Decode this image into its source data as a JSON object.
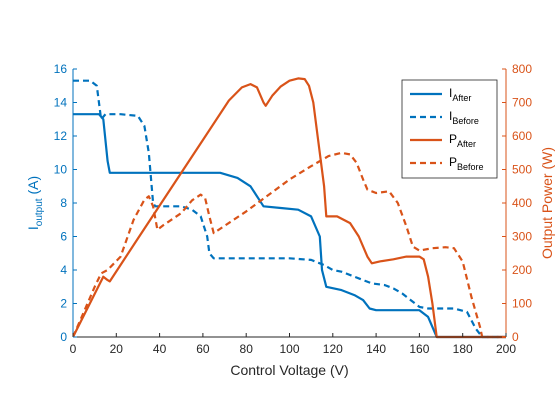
{
  "chart_data": {
    "type": "line",
    "title": "",
    "xlabel": "Control Voltage (V)",
    "ylabel_left": {
      "main": "I",
      "sub": "output",
      "tail": " (A)"
    },
    "ylabel_right": "Output Power (W)",
    "xlim": [
      0,
      200
    ],
    "ylim_left": [
      0,
      16
    ],
    "ylim_right": [
      0,
      800
    ],
    "xticks": [
      "0",
      "20",
      "40",
      "60",
      "80",
      "100",
      "120",
      "140",
      "160",
      "180",
      "200"
    ],
    "yticks_left": [
      "0",
      "2",
      "4",
      "6",
      "8",
      "10",
      "12",
      "14",
      "16"
    ],
    "yticks_right": [
      "0",
      "100",
      "200",
      "300",
      "400",
      "500",
      "600",
      "700",
      "800"
    ],
    "grid": false,
    "legend_position": "top-right",
    "colors": {
      "current": "#0072BD",
      "power": "#D95319",
      "axis": "#262626"
    },
    "series": [
      {
        "legend_main": "I",
        "legend_sub": "After",
        "axis": "left",
        "color": "#0072BD",
        "dash": "solid",
        "points": [
          [
            0,
            13.3
          ],
          [
            12,
            13.3
          ],
          [
            14,
            13.0
          ],
          [
            16,
            10.5
          ],
          [
            17,
            9.8
          ],
          [
            30,
            9.8
          ],
          [
            60,
            9.8
          ],
          [
            68,
            9.8
          ],
          [
            76,
            9.5
          ],
          [
            82,
            9.0
          ],
          [
            86,
            8.2
          ],
          [
            88,
            7.8
          ],
          [
            96,
            7.7
          ],
          [
            104,
            7.6
          ],
          [
            110,
            7.2
          ],
          [
            114,
            6.0
          ],
          [
            115,
            4.0
          ],
          [
            117,
            3.0
          ],
          [
            124,
            2.8
          ],
          [
            130,
            2.5
          ],
          [
            134,
            2.2
          ],
          [
            137,
            1.7
          ],
          [
            140,
            1.6
          ],
          [
            160,
            1.6
          ],
          [
            164,
            1.2
          ],
          [
            166,
            0.6
          ],
          [
            168,
            0
          ],
          [
            200,
            0
          ]
        ]
      },
      {
        "legend_main": "I",
        "legend_sub": "Before",
        "axis": "left",
        "color": "#0072BD",
        "dash": "dashed",
        "points": [
          [
            0,
            15.3
          ],
          [
            8,
            15.3
          ],
          [
            11,
            15.0
          ],
          [
            13,
            13.0
          ],
          [
            15,
            13.3
          ],
          [
            22,
            13.3
          ],
          [
            30,
            13.2
          ],
          [
            33,
            12.6
          ],
          [
            35,
            11.0
          ],
          [
            37,
            8.0
          ],
          [
            38,
            7.8
          ],
          [
            50,
            7.8
          ],
          [
            55,
            7.6
          ],
          [
            59,
            7.2
          ],
          [
            62,
            6.0
          ],
          [
            63,
            5.0
          ],
          [
            65,
            4.7
          ],
          [
            80,
            4.7
          ],
          [
            100,
            4.7
          ],
          [
            110,
            4.6
          ],
          [
            116,
            4.3
          ],
          [
            120,
            4.0
          ],
          [
            124,
            3.9
          ],
          [
            130,
            3.6
          ],
          [
            134,
            3.4
          ],
          [
            138,
            3.2
          ],
          [
            144,
            3.1
          ],
          [
            148,
            2.9
          ],
          [
            152,
            2.6
          ],
          [
            156,
            2.2
          ],
          [
            160,
            1.8
          ],
          [
            164,
            1.7
          ],
          [
            176,
            1.7
          ],
          [
            182,
            1.5
          ],
          [
            186,
            0.5
          ],
          [
            189,
            0
          ],
          [
            200,
            0
          ]
        ]
      },
      {
        "legend_main": "P",
        "legend_sub": "After",
        "axis": "right",
        "color": "#D95319",
        "dash": "solid",
        "points": [
          [
            0,
            0
          ],
          [
            14,
            180
          ],
          [
            16,
            170
          ],
          [
            17,
            166
          ],
          [
            30,
            294
          ],
          [
            60,
            588
          ],
          [
            72,
            706
          ],
          [
            78,
            745
          ],
          [
            82,
            755
          ],
          [
            85,
            745
          ],
          [
            88,
            700
          ],
          [
            89,
            690
          ],
          [
            92,
            720
          ],
          [
            96,
            748
          ],
          [
            100,
            765
          ],
          [
            104,
            772
          ],
          [
            107,
            770
          ],
          [
            109,
            750
          ],
          [
            111,
            700
          ],
          [
            113,
            600
          ],
          [
            116,
            450
          ],
          [
            117,
            360
          ],
          [
            122,
            360
          ],
          [
            128,
            340
          ],
          [
            132,
            300
          ],
          [
            136,
            240
          ],
          [
            138,
            220
          ],
          [
            142,
            226
          ],
          [
            148,
            232
          ],
          [
            154,
            240
          ],
          [
            160,
            240
          ],
          [
            162,
            232
          ],
          [
            164,
            180
          ],
          [
            166,
            100
          ],
          [
            168,
            0
          ],
          [
            200,
            0
          ]
        ]
      },
      {
        "legend_main": "P",
        "legend_sub": "Before",
        "axis": "right",
        "color": "#D95319",
        "dash": "dashed",
        "points": [
          [
            0,
            0
          ],
          [
            10,
            150
          ],
          [
            13,
            190
          ],
          [
            16,
            200
          ],
          [
            22,
            240
          ],
          [
            28,
            350
          ],
          [
            33,
            410
          ],
          [
            35,
            420
          ],
          [
            37,
            390
          ],
          [
            39,
            320
          ],
          [
            42,
            335
          ],
          [
            50,
            370
          ],
          [
            55,
            408
          ],
          [
            59,
            425
          ],
          [
            61,
            415
          ],
          [
            63,
            360
          ],
          [
            65,
            310
          ],
          [
            80,
            375
          ],
          [
            100,
            470
          ],
          [
            110,
            510
          ],
          [
            118,
            540
          ],
          [
            124,
            550
          ],
          [
            128,
            545
          ],
          [
            131,
            520
          ],
          [
            134,
            470
          ],
          [
            136,
            440
          ],
          [
            140,
            430
          ],
          [
            146,
            435
          ],
          [
            150,
            400
          ],
          [
            154,
            330
          ],
          [
            157,
            270
          ],
          [
            160,
            258
          ],
          [
            166,
            265
          ],
          [
            172,
            268
          ],
          [
            176,
            265
          ],
          [
            180,
            225
          ],
          [
            184,
            120
          ],
          [
            188,
            30
          ],
          [
            189,
            0
          ],
          [
            200,
            0
          ]
        ]
      }
    ]
  }
}
